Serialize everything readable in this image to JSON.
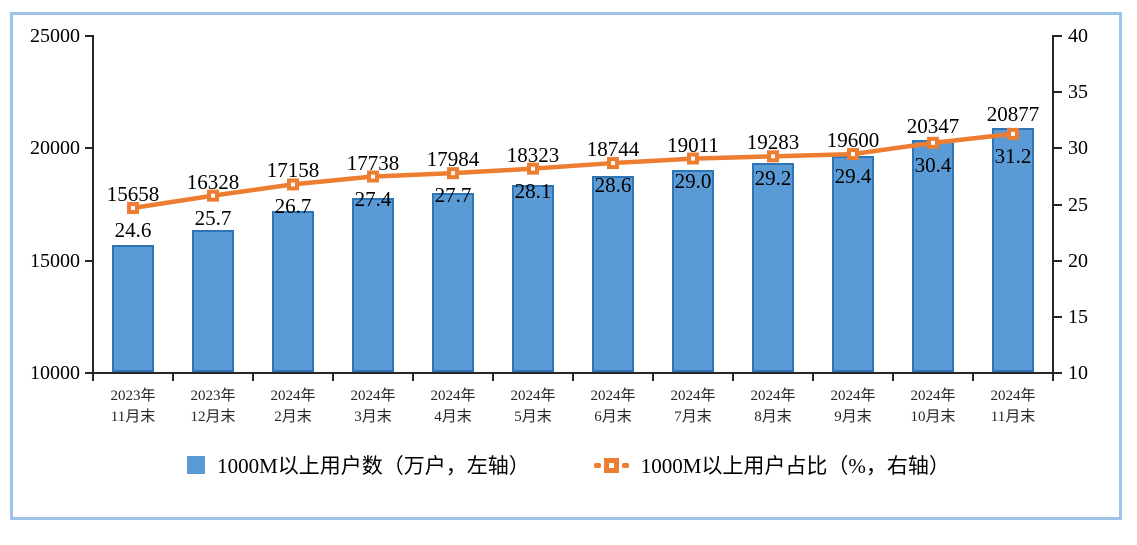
{
  "chart_data": {
    "type": "bar",
    "subtype": "combo-bar-line",
    "categories": [
      {
        "top": "2023年",
        "bottom": "11月末"
      },
      {
        "top": "2023年",
        "bottom": "12月末"
      },
      {
        "top": "2024年",
        "bottom": "2月末"
      },
      {
        "top": "2024年",
        "bottom": "3月末"
      },
      {
        "top": "2024年",
        "bottom": "4月末"
      },
      {
        "top": "2024年",
        "bottom": "5月末"
      },
      {
        "top": "2024年",
        "bottom": "6月末"
      },
      {
        "top": "2024年",
        "bottom": "7月末"
      },
      {
        "top": "2024年",
        "bottom": "8月末"
      },
      {
        "top": "2024年",
        "bottom": "9月末"
      },
      {
        "top": "2024年",
        "bottom": "10月末"
      },
      {
        "top": "2024年",
        "bottom": "11月末"
      }
    ],
    "series": [
      {
        "name": "1000M以上用户数（万户，左轴）",
        "type": "bar",
        "axis": "left",
        "values": [
          15658,
          16328,
          17158,
          17738,
          17984,
          18323,
          18744,
          19011,
          19283,
          19600,
          20347,
          20877
        ],
        "labels": [
          "15658",
          "16328",
          "17158",
          "17738",
          "17984",
          "18323",
          "18744",
          "19011",
          "19283",
          "19600",
          "20347",
          "20877"
        ]
      },
      {
        "name": "1000M以上用户占比（%，右轴）",
        "type": "line",
        "axis": "right",
        "values": [
          24.6,
          25.7,
          26.7,
          27.4,
          27.7,
          28.1,
          28.6,
          29.0,
          29.2,
          29.4,
          30.4,
          31.2
        ],
        "labels": [
          "24.6",
          "25.7",
          "26.7",
          "27.4",
          "27.7",
          "28.1",
          "28.6",
          "29.0",
          "29.2",
          "29.4",
          "30.4",
          "31.2"
        ]
      }
    ],
    "left_axis": {
      "min": 10000,
      "max": 25000,
      "tick_labels": [
        "25000",
        "20000",
        "15000",
        "10000"
      ],
      "tick_values": [
        25000,
        20000,
        15000,
        10000
      ]
    },
    "right_axis": {
      "min": 10,
      "max": 40,
      "tick_labels": [
        "40",
        "35",
        "30",
        "25",
        "20",
        "15",
        "10"
      ],
      "tick_values": [
        40,
        35,
        30,
        25,
        20,
        15,
        10
      ]
    },
    "grid": false,
    "legend_position": "bottom",
    "title": ""
  },
  "colors": {
    "bar_fill": "#5B9BD5",
    "bar_border": "#2E75B6",
    "line": "#ED7D31",
    "marker_center": "#FFFFFF",
    "frame_border": "#9DC3E6",
    "axis": "#262626"
  }
}
